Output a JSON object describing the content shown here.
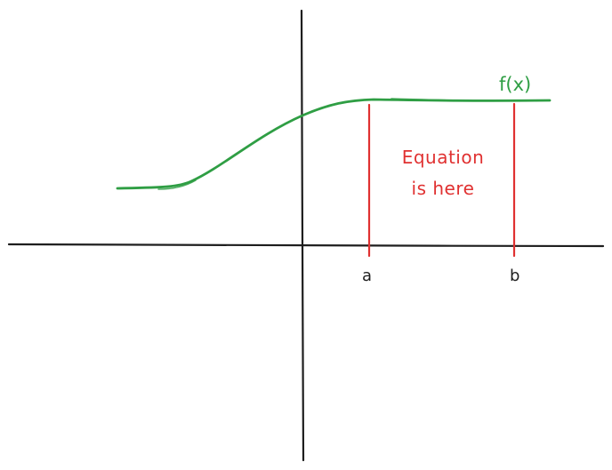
{
  "diagram": {
    "function_label": "f(x)",
    "bound_a_label": "a",
    "bound_b_label": "b",
    "equation_line_1": "Equation",
    "equation_line_2": "is here"
  },
  "colors": {
    "curve": "#2f9e44",
    "bounds": "#e03131",
    "axes": "#1e1e1e",
    "background": "#ffffff"
  }
}
